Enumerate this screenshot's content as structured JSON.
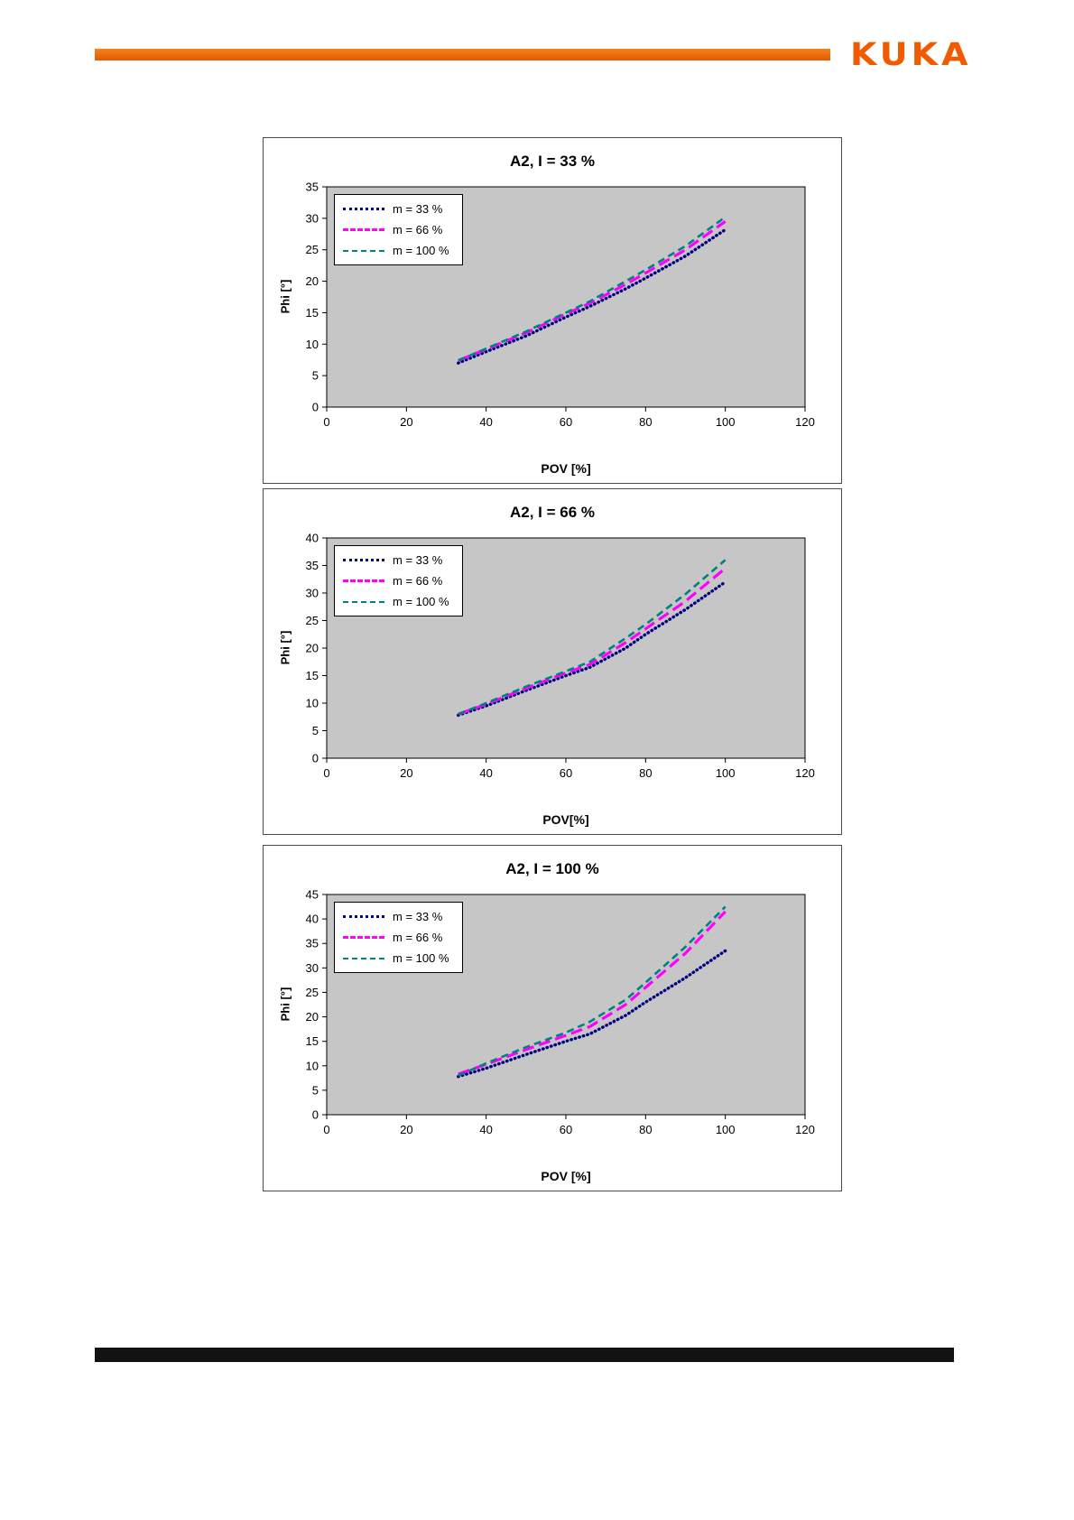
{
  "page": {
    "logo_text": "KUKA",
    "accent_color": "#f05a00",
    "footer_color": "#121212"
  },
  "chart_data": [
    {
      "type": "line",
      "title": "A2,  I = 33 %",
      "xlabel": "POV [%]",
      "ylabel": "Phi [°]",
      "xlim": [
        0,
        120
      ],
      "xstep": 20,
      "ylim": [
        0,
        35
      ],
      "ystep": 5,
      "plot_bg": "#c6c6c6",
      "legend_position": "top-left",
      "x": [
        33,
        40,
        50,
        60,
        66,
        75,
        80,
        90,
        100
      ],
      "series": [
        {
          "name": "m = 33 %",
          "color": "#000080",
          "style": "dot",
          "values": [
            7.0,
            8.8,
            11.3,
            14.3,
            16.0,
            18.8,
            20.5,
            24.0,
            28.2
          ]
        },
        {
          "name": "m = 66 %",
          "color": "#ff00ff",
          "style": "dash-long",
          "values": [
            7.4,
            9.2,
            11.8,
            14.8,
            16.5,
            19.5,
            21.3,
            25.0,
            29.5
          ]
        },
        {
          "name": "m = 100 %",
          "color": "#008080",
          "style": "dash",
          "values": [
            7.4,
            9.3,
            12.0,
            15.0,
            16.8,
            20.0,
            21.8,
            25.6,
            30.2
          ]
        }
      ]
    },
    {
      "type": "line",
      "title": "A2,  I = 66 %",
      "xlabel": "POV[%]",
      "ylabel": "Phi [°]",
      "xlim": [
        0,
        120
      ],
      "xstep": 20,
      "ylim": [
        0,
        40
      ],
      "ystep": 5,
      "plot_bg": "#c6c6c6",
      "legend_position": "top-left",
      "x": [
        33,
        40,
        50,
        60,
        66,
        75,
        80,
        90,
        100
      ],
      "series": [
        {
          "name": "m = 33 %",
          "color": "#000080",
          "style": "dot",
          "values": [
            7.8,
            9.5,
            12.3,
            15.0,
            16.5,
            20.0,
            22.5,
            27.0,
            32.0
          ]
        },
        {
          "name": "m = 66 %",
          "color": "#ff00ff",
          "style": "dash-long",
          "values": [
            8.0,
            9.8,
            12.7,
            15.5,
            17.0,
            21.0,
            23.5,
            28.5,
            34.5
          ]
        },
        {
          "name": "m = 100 %",
          "color": "#008080",
          "style": "dash",
          "values": [
            8.0,
            10.0,
            13.0,
            15.8,
            17.5,
            21.8,
            24.3,
            29.8,
            36.0
          ]
        }
      ]
    },
    {
      "type": "line",
      "title": "A2,  I = 100 %",
      "xlabel": "POV [%]",
      "ylabel": "Phi [°]",
      "xlim": [
        0,
        120
      ],
      "xstep": 20,
      "ylim": [
        0,
        45
      ],
      "ystep": 5,
      "plot_bg": "#c6c6c6",
      "legend_position": "top-left",
      "x": [
        33,
        40,
        50,
        60,
        66,
        75,
        80,
        90,
        100
      ],
      "series": [
        {
          "name": "m = 33 %",
          "color": "#000080",
          "style": "dot",
          "values": [
            7.8,
            9.5,
            12.3,
            15.0,
            16.5,
            20.3,
            23.0,
            28.0,
            33.5
          ]
        },
        {
          "name": "m = 66 %",
          "color": "#ff00ff",
          "style": "dash-long",
          "values": [
            8.3,
            10.3,
            13.3,
            16.2,
            18.0,
            22.5,
            26.0,
            33.0,
            41.5
          ]
        },
        {
          "name": "m = 100 %",
          "color": "#008080",
          "style": "dash",
          "values": [
            8.0,
            10.5,
            13.8,
            16.8,
            19.0,
            23.5,
            27.0,
            34.3,
            42.5
          ]
        }
      ]
    }
  ]
}
